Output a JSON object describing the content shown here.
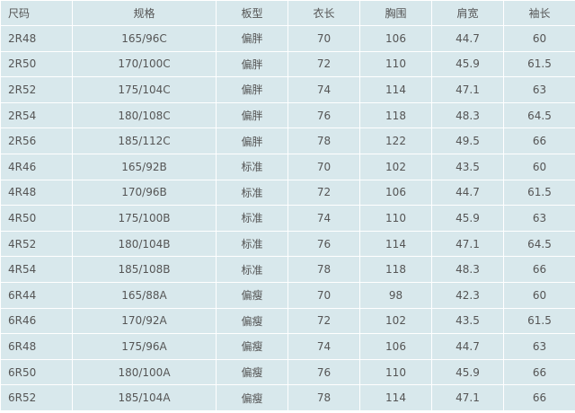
{
  "table": {
    "header": [
      "尺码",
      "规格",
      "板型",
      "衣长",
      "胸围",
      "肩宽",
      "袖长"
    ],
    "rows": [
      [
        "2R48",
        "165/96C",
        "偏胖",
        70,
        106,
        44.7,
        60
      ],
      [
        "2R50",
        "170/100C",
        "偏胖",
        72,
        110,
        45.9,
        61.5
      ],
      [
        "2R52",
        "175/104C",
        "偏胖",
        74,
        114,
        47.1,
        63
      ],
      [
        "2R54",
        "180/108C",
        "偏胖",
        76,
        118,
        48.3,
        64.5
      ],
      [
        "2R56",
        "185/112C",
        "偏胖",
        78,
        122,
        49.5,
        66
      ],
      [
        "4R46",
        "165/92B",
        "标准",
        70,
        102,
        43.5,
        60
      ],
      [
        "4R48",
        "170/96B",
        "标准",
        72,
        106,
        44.7,
        61.5
      ],
      [
        "4R50",
        "175/100B",
        "标准",
        74,
        110,
        45.9,
        63
      ],
      [
        "4R52",
        "180/104B",
        "标准",
        76,
        114,
        47.1,
        64.5
      ],
      [
        "4R54",
        "185/108B",
        "标准",
        78,
        118,
        48.3,
        66
      ],
      [
        "6R44",
        "165/88A",
        "偏瘦",
        70,
        98,
        42.3,
        60
      ],
      [
        "6R46",
        "170/92A",
        "偏瘦",
        72,
        102,
        43.5,
        61.5
      ],
      [
        "6R48",
        "175/96A",
        "偏瘦",
        74,
        106,
        44.7,
        63
      ],
      [
        "6R50",
        "180/100A",
        "偏瘦",
        76,
        110,
        45.9,
        66
      ],
      [
        "6R52",
        "185/104A",
        "偏瘦",
        78,
        114,
        47.1,
        66
      ]
    ]
  }
}
